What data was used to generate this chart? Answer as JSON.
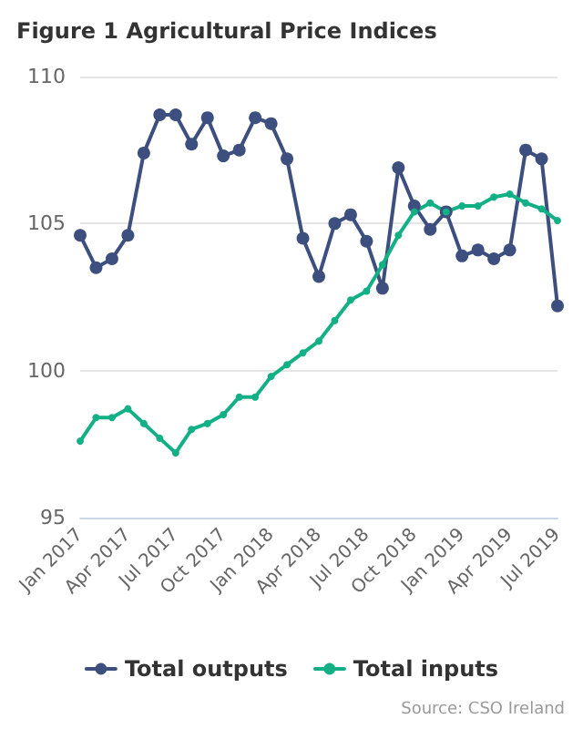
{
  "chart_data": {
    "type": "line",
    "title": "Figure 1 Agricultural Price Indices",
    "categories": [
      "Jan 2017",
      null,
      null,
      "Apr 2017",
      null,
      null,
      "Jul 2017",
      null,
      null,
      "Oct 2017",
      null,
      null,
      "Jan 2018",
      null,
      null,
      "Apr 2018",
      null,
      null,
      "Jul 2018",
      null,
      null,
      "Oct 2018",
      null,
      null,
      "Jan 2019",
      null,
      null,
      "Apr 2019",
      null,
      null,
      "Jul 2019"
    ],
    "series": [
      {
        "name": "Total outputs",
        "color": "#3d4f7e",
        "values": [
          104.6,
          103.5,
          103.8,
          104.6,
          107.4,
          108.7,
          108.7,
          107.7,
          108.6,
          107.3,
          107.5,
          108.6,
          108.4,
          107.2,
          104.5,
          103.2,
          105.0,
          105.3,
          104.4,
          102.8,
          106.9,
          105.6,
          104.8,
          105.4,
          103.9,
          104.1,
          103.8,
          104.1,
          107.5,
          107.2,
          102.2
        ]
      },
      {
        "name": "Total inputs",
        "color": "#13b086",
        "values": [
          97.6,
          98.4,
          98.4,
          98.7,
          98.2,
          97.7,
          97.2,
          98.0,
          98.2,
          98.5,
          99.1,
          99.1,
          99.8,
          100.2,
          100.6,
          101.0,
          101.7,
          102.4,
          102.7,
          103.6,
          104.6,
          105.4,
          105.7,
          105.4,
          105.6,
          105.6,
          105.9,
          106.0,
          105.7,
          105.5,
          105.1
        ]
      }
    ],
    "ylim": [
      95,
      110
    ],
    "yticks": [
      95,
      100,
      105,
      110
    ],
    "grid": "y",
    "legend": "bottom",
    "marker": "circle",
    "line_style": "solid",
    "annotations": [
      "Source: CSO Ireland"
    ]
  }
}
